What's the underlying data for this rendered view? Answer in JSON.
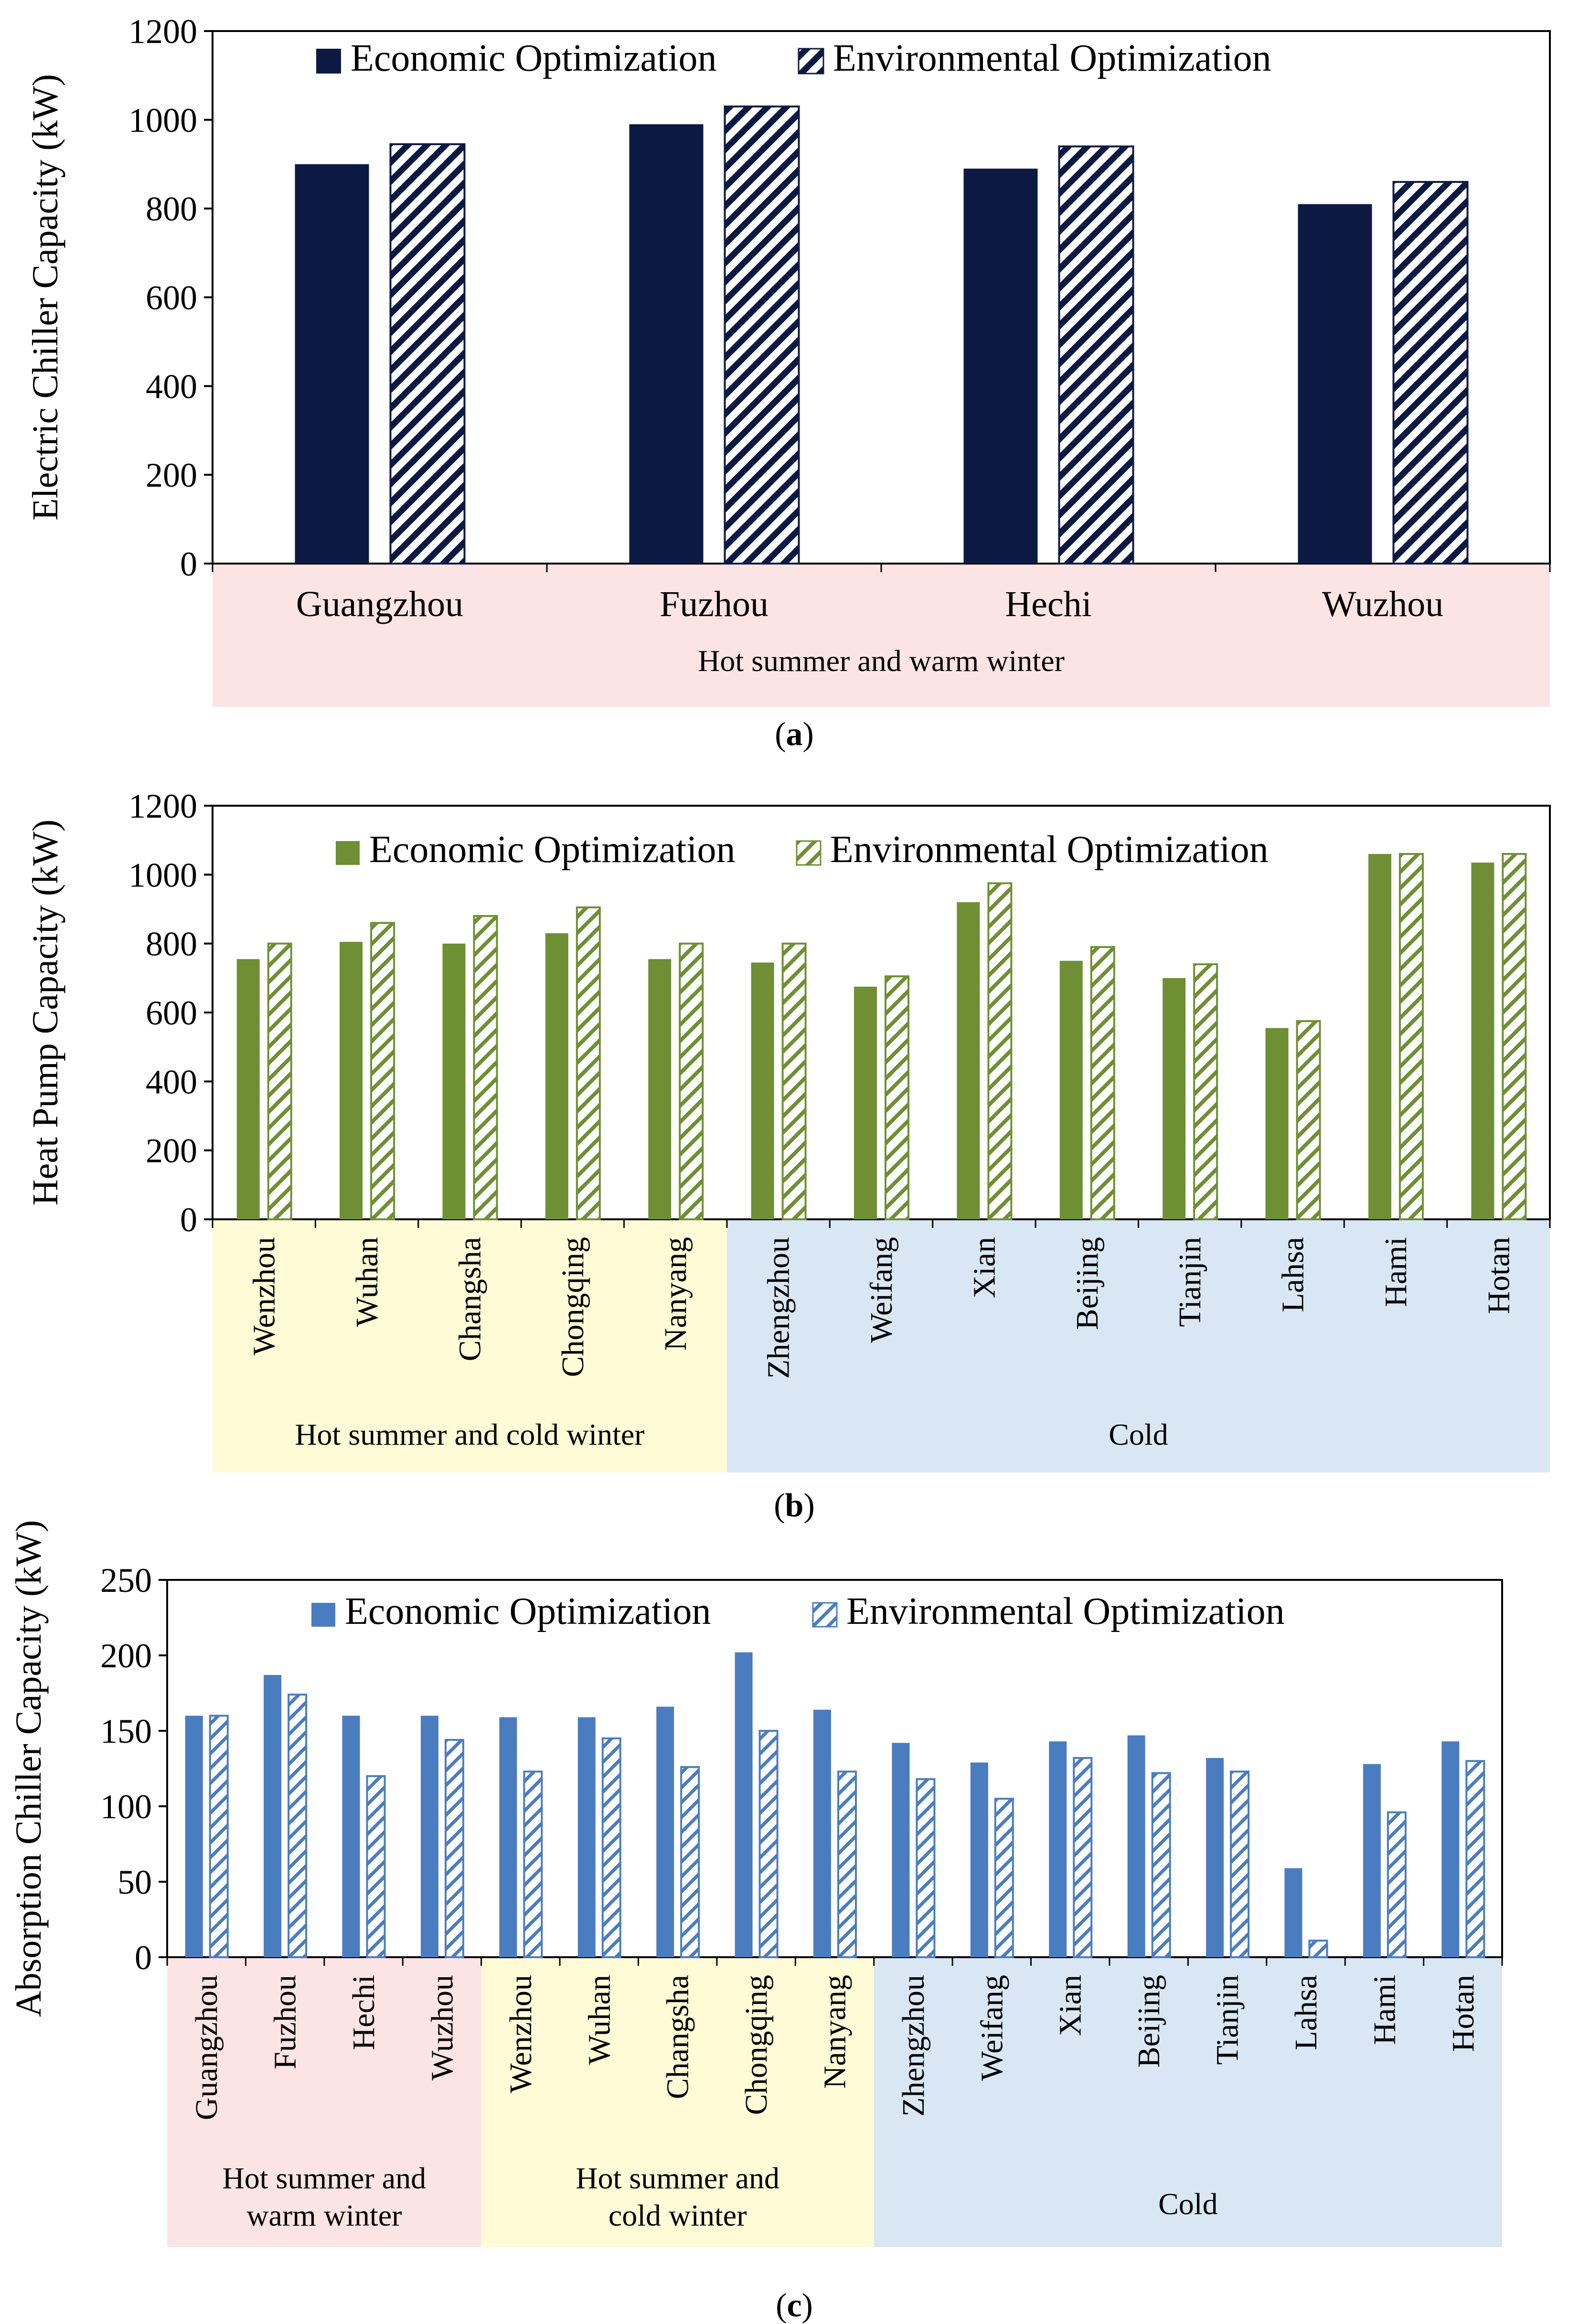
{
  "colors": {
    "electric_econ": "#0c1a43",
    "electric_env": "#0c1a43",
    "heat_econ": "#6e8f33",
    "heat_env": "#6e8f33",
    "abs_econ": "#4a7cc0",
    "abs_env": "#4a7cc0",
    "region_hot_warm": "#fce4e4",
    "region_hot_cold": "#fefbd6",
    "region_cold": "#d9e7f4"
  },
  "chart_data": [
    {
      "id": "a",
      "type": "bar",
      "caption": "a",
      "ylabel": "Electric Chiller Capacity (kW)",
      "ylim": [
        0,
        1200
      ],
      "yticks": [
        0,
        200,
        400,
        600,
        800,
        1000,
        1200
      ],
      "categories": [
        "Guangzhou",
        "Fuzhou",
        "Hechi",
        "Wuzhou"
      ],
      "series": [
        {
          "name": "Economic Optimization",
          "values": [
            900,
            990,
            890,
            810
          ]
        },
        {
          "name": "Environmental Optimization",
          "values": [
            945,
            1030,
            940,
            860
          ]
        }
      ],
      "regions": [
        {
          "label": "Hot summer and warm winter",
          "start": 0,
          "end": 3,
          "color_key": "region_hot_warm"
        }
      ]
    },
    {
      "id": "b",
      "type": "bar",
      "caption": "b",
      "ylabel": "Heat Pump Capacity (kW)",
      "ylim": [
        0,
        1200
      ],
      "yticks": [
        0,
        200,
        400,
        600,
        800,
        1000,
        1200
      ],
      "categories": [
        "Wenzhou",
        "Wuhan",
        "Changsha",
        "Chongqing",
        "Nanyang",
        "Zhengzhou",
        "Weifang",
        "Xian",
        "Beijing",
        "Tianjin",
        "Lahsa",
        "Hami",
        "Hotan"
      ],
      "series": [
        {
          "name": "Economic Optimization",
          "values": [
            755,
            805,
            800,
            830,
            755,
            745,
            675,
            920,
            750,
            700,
            555,
            1060,
            1035
          ]
        },
        {
          "name": "Environmental Optimization",
          "values": [
            800,
            860,
            880,
            905,
            800,
            800,
            705,
            975,
            790,
            740,
            575,
            1060,
            1060
          ]
        }
      ],
      "regions": [
        {
          "label": "Hot summer and cold winter",
          "start": 0,
          "end": 4,
          "color_key": "region_hot_cold"
        },
        {
          "label": "Cold",
          "start": 5,
          "end": 12,
          "color_key": "region_cold"
        }
      ]
    },
    {
      "id": "c",
      "type": "bar",
      "caption": "c",
      "ylabel": "Absorption Chiller Capacity (kW)",
      "ylim": [
        0,
        250
      ],
      "yticks": [
        0,
        50,
        100,
        150,
        200,
        250
      ],
      "categories": [
        "Guangzhou",
        "Fuzhou",
        "Hechi",
        "Wuzhou",
        "Wenzhou",
        "Wuhan",
        "Changsha",
        "Chongqing",
        "Nanyang",
        "Zhengzhou",
        "Weifang",
        "Xian",
        "Beijing",
        "Tianjin",
        "Lahsa",
        "Hami",
        "Hotan"
      ],
      "series": [
        {
          "name": "Economic Optimization",
          "values": [
            160,
            187,
            160,
            160,
            159,
            159,
            166,
            202,
            164,
            142,
            129,
            143,
            147,
            132,
            59,
            128,
            143
          ]
        },
        {
          "name": "Environmental Optimization",
          "values": [
            160,
            174,
            120,
            144,
            123,
            145,
            126,
            150,
            123,
            118,
            105,
            132,
            122,
            123,
            11,
            96,
            130
          ]
        }
      ],
      "regions": [
        {
          "label": "Hot summer and warm winter",
          "start": 0,
          "end": 3,
          "color_key": "region_hot_warm"
        },
        {
          "label": "Hot summer and cold winter",
          "start": 4,
          "end": 8,
          "color_key": "region_hot_cold"
        },
        {
          "label": "Cold",
          "start": 9,
          "end": 16,
          "color_key": "region_cold"
        }
      ]
    }
  ]
}
